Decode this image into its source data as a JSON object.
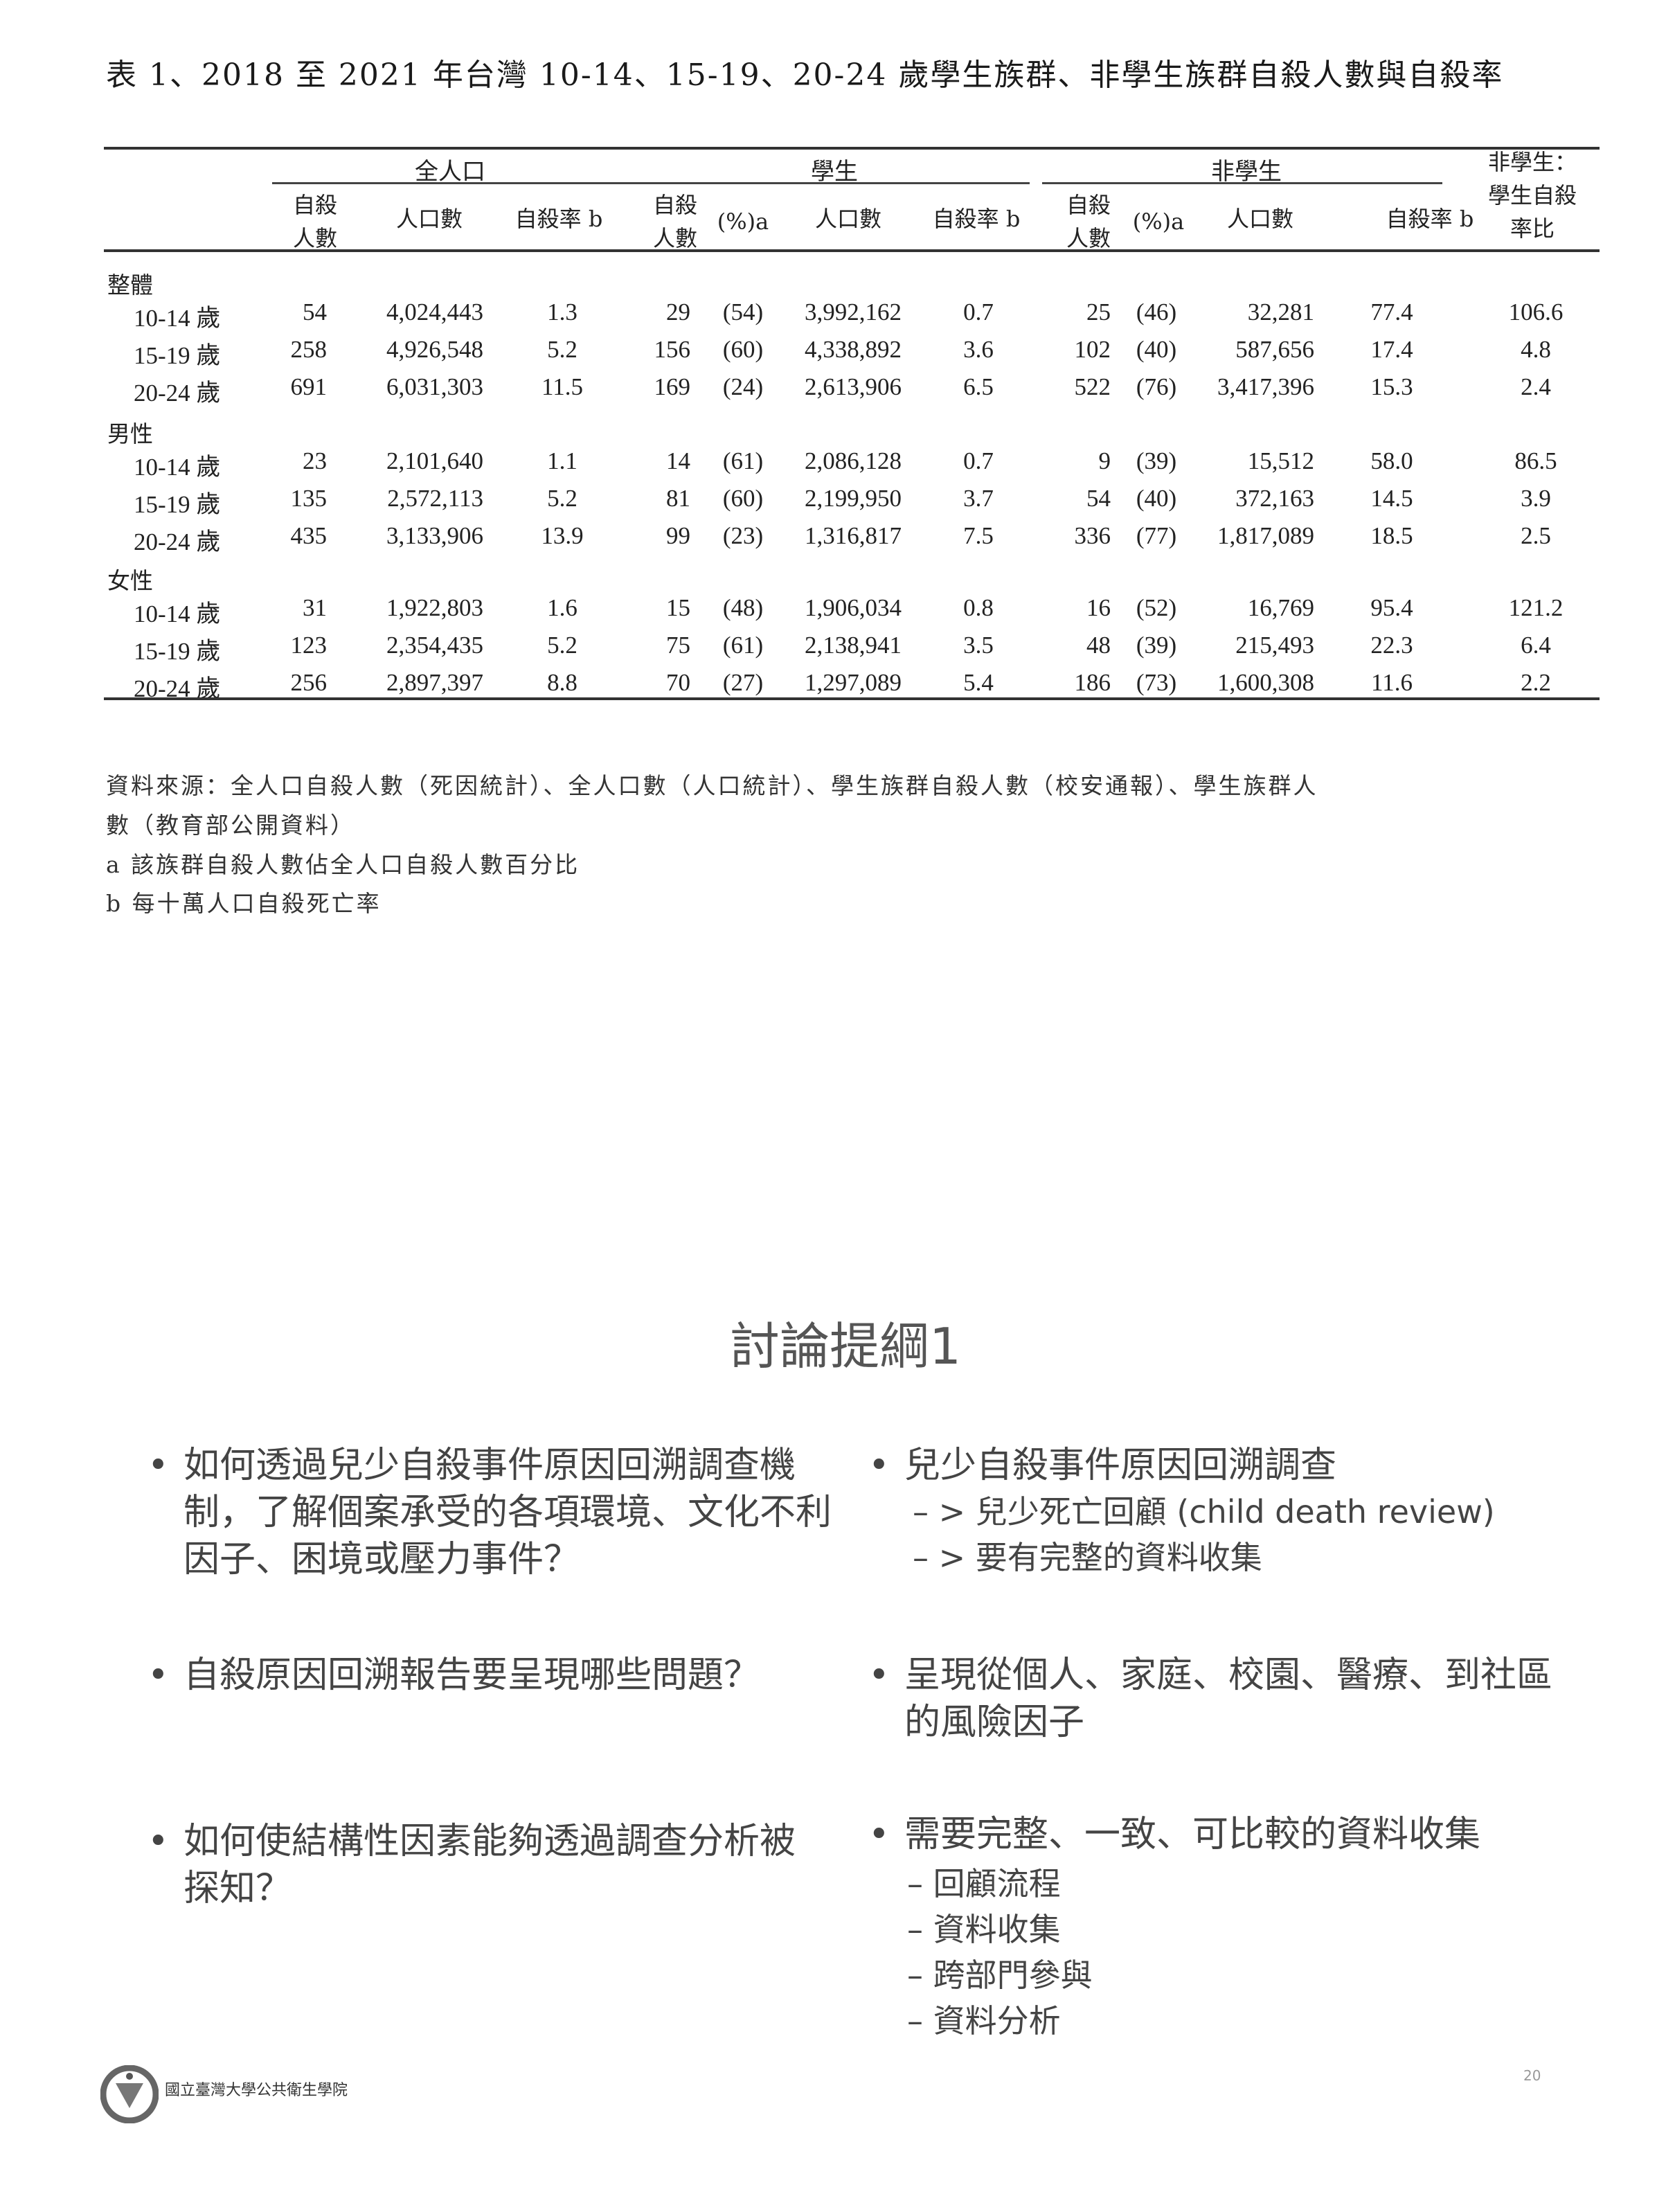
{
  "table": {
    "title": "表 1、2018 至 2021 年台灣 10-14、15-19、20-24 歲學生族群、非學生族群自殺人數與自殺率",
    "groups": [
      "全人口",
      "學生",
      "非學生"
    ],
    "ratio_header": [
      "非學生：",
      "學生自殺",
      "率比"
    ],
    "subheaders": {
      "suicides": [
        "自殺",
        "人數"
      ],
      "population": "人口數",
      "rate": "自殺率 b",
      "pct": "(%)a"
    },
    "sections": [
      {
        "label": "整體",
        "rows": [
          [
            "10-14 歲",
            "54",
            "4,024,443",
            "1.3",
            "29",
            "(54)",
            "3,992,162",
            "0.7",
            "25",
            "(46)",
            "32,281",
            "77.4",
            "106.6"
          ],
          [
            "15-19 歲",
            "258",
            "4,926,548",
            "5.2",
            "156",
            "(60)",
            "4,338,892",
            "3.6",
            "102",
            "(40)",
            "587,656",
            "17.4",
            "4.8"
          ],
          [
            "20-24 歲",
            "691",
            "6,031,303",
            "11.5",
            "169",
            "(24)",
            "2,613,906",
            "6.5",
            "522",
            "(76)",
            "3,417,396",
            "15.3",
            "2.4"
          ]
        ]
      },
      {
        "label": "男性",
        "rows": [
          [
            "10-14 歲",
            "23",
            "2,101,640",
            "1.1",
            "14",
            "(61)",
            "2,086,128",
            "0.7",
            "9",
            "(39)",
            "15,512",
            "58.0",
            "86.5"
          ],
          [
            "15-19 歲",
            "135",
            "2,572,113",
            "5.2",
            "81",
            "(60)",
            "2,199,950",
            "3.7",
            "54",
            "(40)",
            "372,163",
            "14.5",
            "3.9"
          ],
          [
            "20-24 歲",
            "435",
            "3,133,906",
            "13.9",
            "99",
            "(23)",
            "1,316,817",
            "7.5",
            "336",
            "(77)",
            "1,817,089",
            "18.5",
            "2.5"
          ]
        ]
      },
      {
        "label": "女性",
        "rows": [
          [
            "10-14 歲",
            "31",
            "1,922,803",
            "1.6",
            "15",
            "(48)",
            "1,906,034",
            "0.8",
            "16",
            "(52)",
            "16,769",
            "95.4",
            "121.2"
          ],
          [
            "15-19 歲",
            "123",
            "2,354,435",
            "5.2",
            "75",
            "(61)",
            "2,138,941",
            "3.5",
            "48",
            "(39)",
            "215,493",
            "22.3",
            "6.4"
          ],
          [
            "20-24 歲",
            "256",
            "2,897,397",
            "8.8",
            "70",
            "(27)",
            "1,297,089",
            "5.4",
            "186",
            "(73)",
            "1,600,308",
            "11.6",
            "2.2"
          ]
        ]
      }
    ],
    "notes": [
      "資料來源：全人口自殺人數（死因統計）、全人口數（人口統計）、學生族群自殺人數（校安通報）、學生族群人",
      "數（教育部公開資料）",
      "a  該族群自殺人數佔全人口自殺人數百分比",
      "b  每十萬人口自殺死亡率"
    ]
  },
  "slide": {
    "title": "討論提綱1",
    "left": [
      "如何透過兒少自殺事件原因回溯調查機制，了解個案承受的各項環境、文化不利因子、困境或壓力事件？",
      "自殺原因回溯報告要呈現哪些問題？",
      "如何使結構性因素能夠透過調查分析被探知？"
    ],
    "right": [
      {
        "text": "兒少自殺事件原因回溯調查",
        "subs": [
          "– > 兒少死亡回顧 (child death review)",
          "– > 要有完整的資料收集"
        ]
      },
      {
        "text": "呈現從個人、家庭、校園、醫療、到社區的風險因子",
        "subs": []
      },
      {
        "text": "需要完整、一致、可比較的資料收集",
        "subs": [
          "– 回顧流程",
          "– 資料收集",
          "– 跨部門參與",
          "– 資料分析"
        ]
      }
    ],
    "footer": "國立臺灣大學公共衛生學院",
    "page_number": "20"
  }
}
